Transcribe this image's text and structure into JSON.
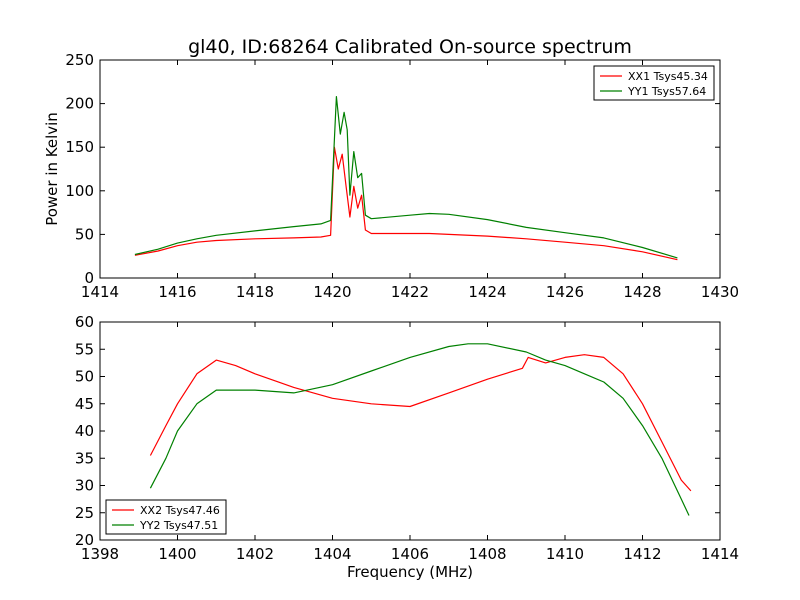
{
  "chart_data": [
    {
      "type": "line",
      "title": "gl40, ID:68264 Calibrated On-source spectrum",
      "xlabel": "",
      "ylabel": "Power in Kelvin",
      "xlim": [
        1414,
        1430
      ],
      "ylim": [
        0,
        250
      ],
      "xticks": [
        1414,
        1416,
        1418,
        1420,
        1422,
        1424,
        1426,
        1428,
        1430
      ],
      "yticks": [
        0,
        50,
        100,
        150,
        200,
        250
      ],
      "legend_position": "top-right",
      "series": [
        {
          "name": "XX1 Tsys45.34",
          "color": "#ff0000",
          "x": [
            1414.9,
            1415.5,
            1416.0,
            1416.5,
            1417.0,
            1418.0,
            1419.0,
            1419.7,
            1419.95,
            1420.05,
            1420.15,
            1420.25,
            1420.35,
            1420.45,
            1420.55,
            1420.65,
            1420.75,
            1420.85,
            1421.0,
            1422.0,
            1422.5,
            1423.0,
            1424.0,
            1425.0,
            1426.0,
            1427.0,
            1428.0,
            1428.9
          ],
          "y": [
            26,
            31,
            37,
            41,
            43,
            45,
            46,
            47,
            49,
            150,
            125,
            142,
            105,
            70,
            105,
            80,
            95,
            55,
            51,
            51,
            51,
            50,
            48,
            45,
            41,
            37,
            30,
            21
          ]
        },
        {
          "name": "YY1 Tsys57.64",
          "color": "#008000",
          "x": [
            1414.9,
            1415.5,
            1416.0,
            1416.5,
            1417.0,
            1418.0,
            1419.0,
            1419.7,
            1419.95,
            1420.1,
            1420.2,
            1420.3,
            1420.38,
            1420.45,
            1420.55,
            1420.65,
            1420.75,
            1420.85,
            1421.0,
            1422.0,
            1422.5,
            1423.0,
            1424.0,
            1425.0,
            1426.0,
            1427.0,
            1428.0,
            1428.9
          ],
          "y": [
            27,
            33,
            40,
            45,
            49,
            54,
            59,
            62,
            66,
            208,
            165,
            190,
            170,
            95,
            145,
            115,
            120,
            72,
            68,
            72,
            74,
            73,
            67,
            58,
            52,
            46,
            35,
            23
          ]
        }
      ]
    },
    {
      "type": "line",
      "title": "",
      "xlabel": "Frequency (MHz)",
      "ylabel": "",
      "xlim": [
        1398,
        1414
      ],
      "ylim": [
        20,
        60
      ],
      "xticks": [
        1398,
        1400,
        1402,
        1404,
        1406,
        1408,
        1410,
        1412,
        1414
      ],
      "yticks": [
        20,
        25,
        30,
        35,
        40,
        45,
        50,
        55,
        60
      ],
      "legend_position": "bottom-left",
      "series": [
        {
          "name": "XX2 Tsys47.46",
          "color": "#ff0000",
          "x": [
            1399.3,
            1399.7,
            1400.0,
            1400.5,
            1401.0,
            1401.5,
            1402.0,
            1403.0,
            1404.0,
            1405.0,
            1406.0,
            1407.0,
            1408.0,
            1408.9,
            1409.05,
            1409.5,
            1410.0,
            1410.5,
            1411.0,
            1411.5,
            1412.0,
            1412.5,
            1413.0,
            1413.25
          ],
          "y": [
            35.5,
            41,
            45,
            50.5,
            53,
            52,
            50.5,
            48,
            46,
            45,
            44.5,
            47,
            49.5,
            51.5,
            53.5,
            52.5,
            53.5,
            54,
            53.5,
            50.5,
            45,
            38,
            31,
            29
          ]
        },
        {
          "name": "YY2 Tsys47.51",
          "color": "#008000",
          "x": [
            1399.3,
            1399.7,
            1400.0,
            1400.5,
            1401.0,
            1401.5,
            1402.0,
            1403.0,
            1404.0,
            1405.0,
            1406.0,
            1407.0,
            1407.5,
            1408.0,
            1409.0,
            1409.5,
            1410.0,
            1410.5,
            1411.0,
            1411.5,
            1412.0,
            1412.5,
            1413.0,
            1413.2
          ],
          "y": [
            29.5,
            35,
            40,
            45,
            47.5,
            47.5,
            47.5,
            47,
            48.5,
            51,
            53.5,
            55.5,
            56,
            56,
            54.5,
            53,
            52,
            50.5,
            49,
            46,
            41,
            35,
            27.5,
            24.5
          ]
        }
      ]
    }
  ]
}
